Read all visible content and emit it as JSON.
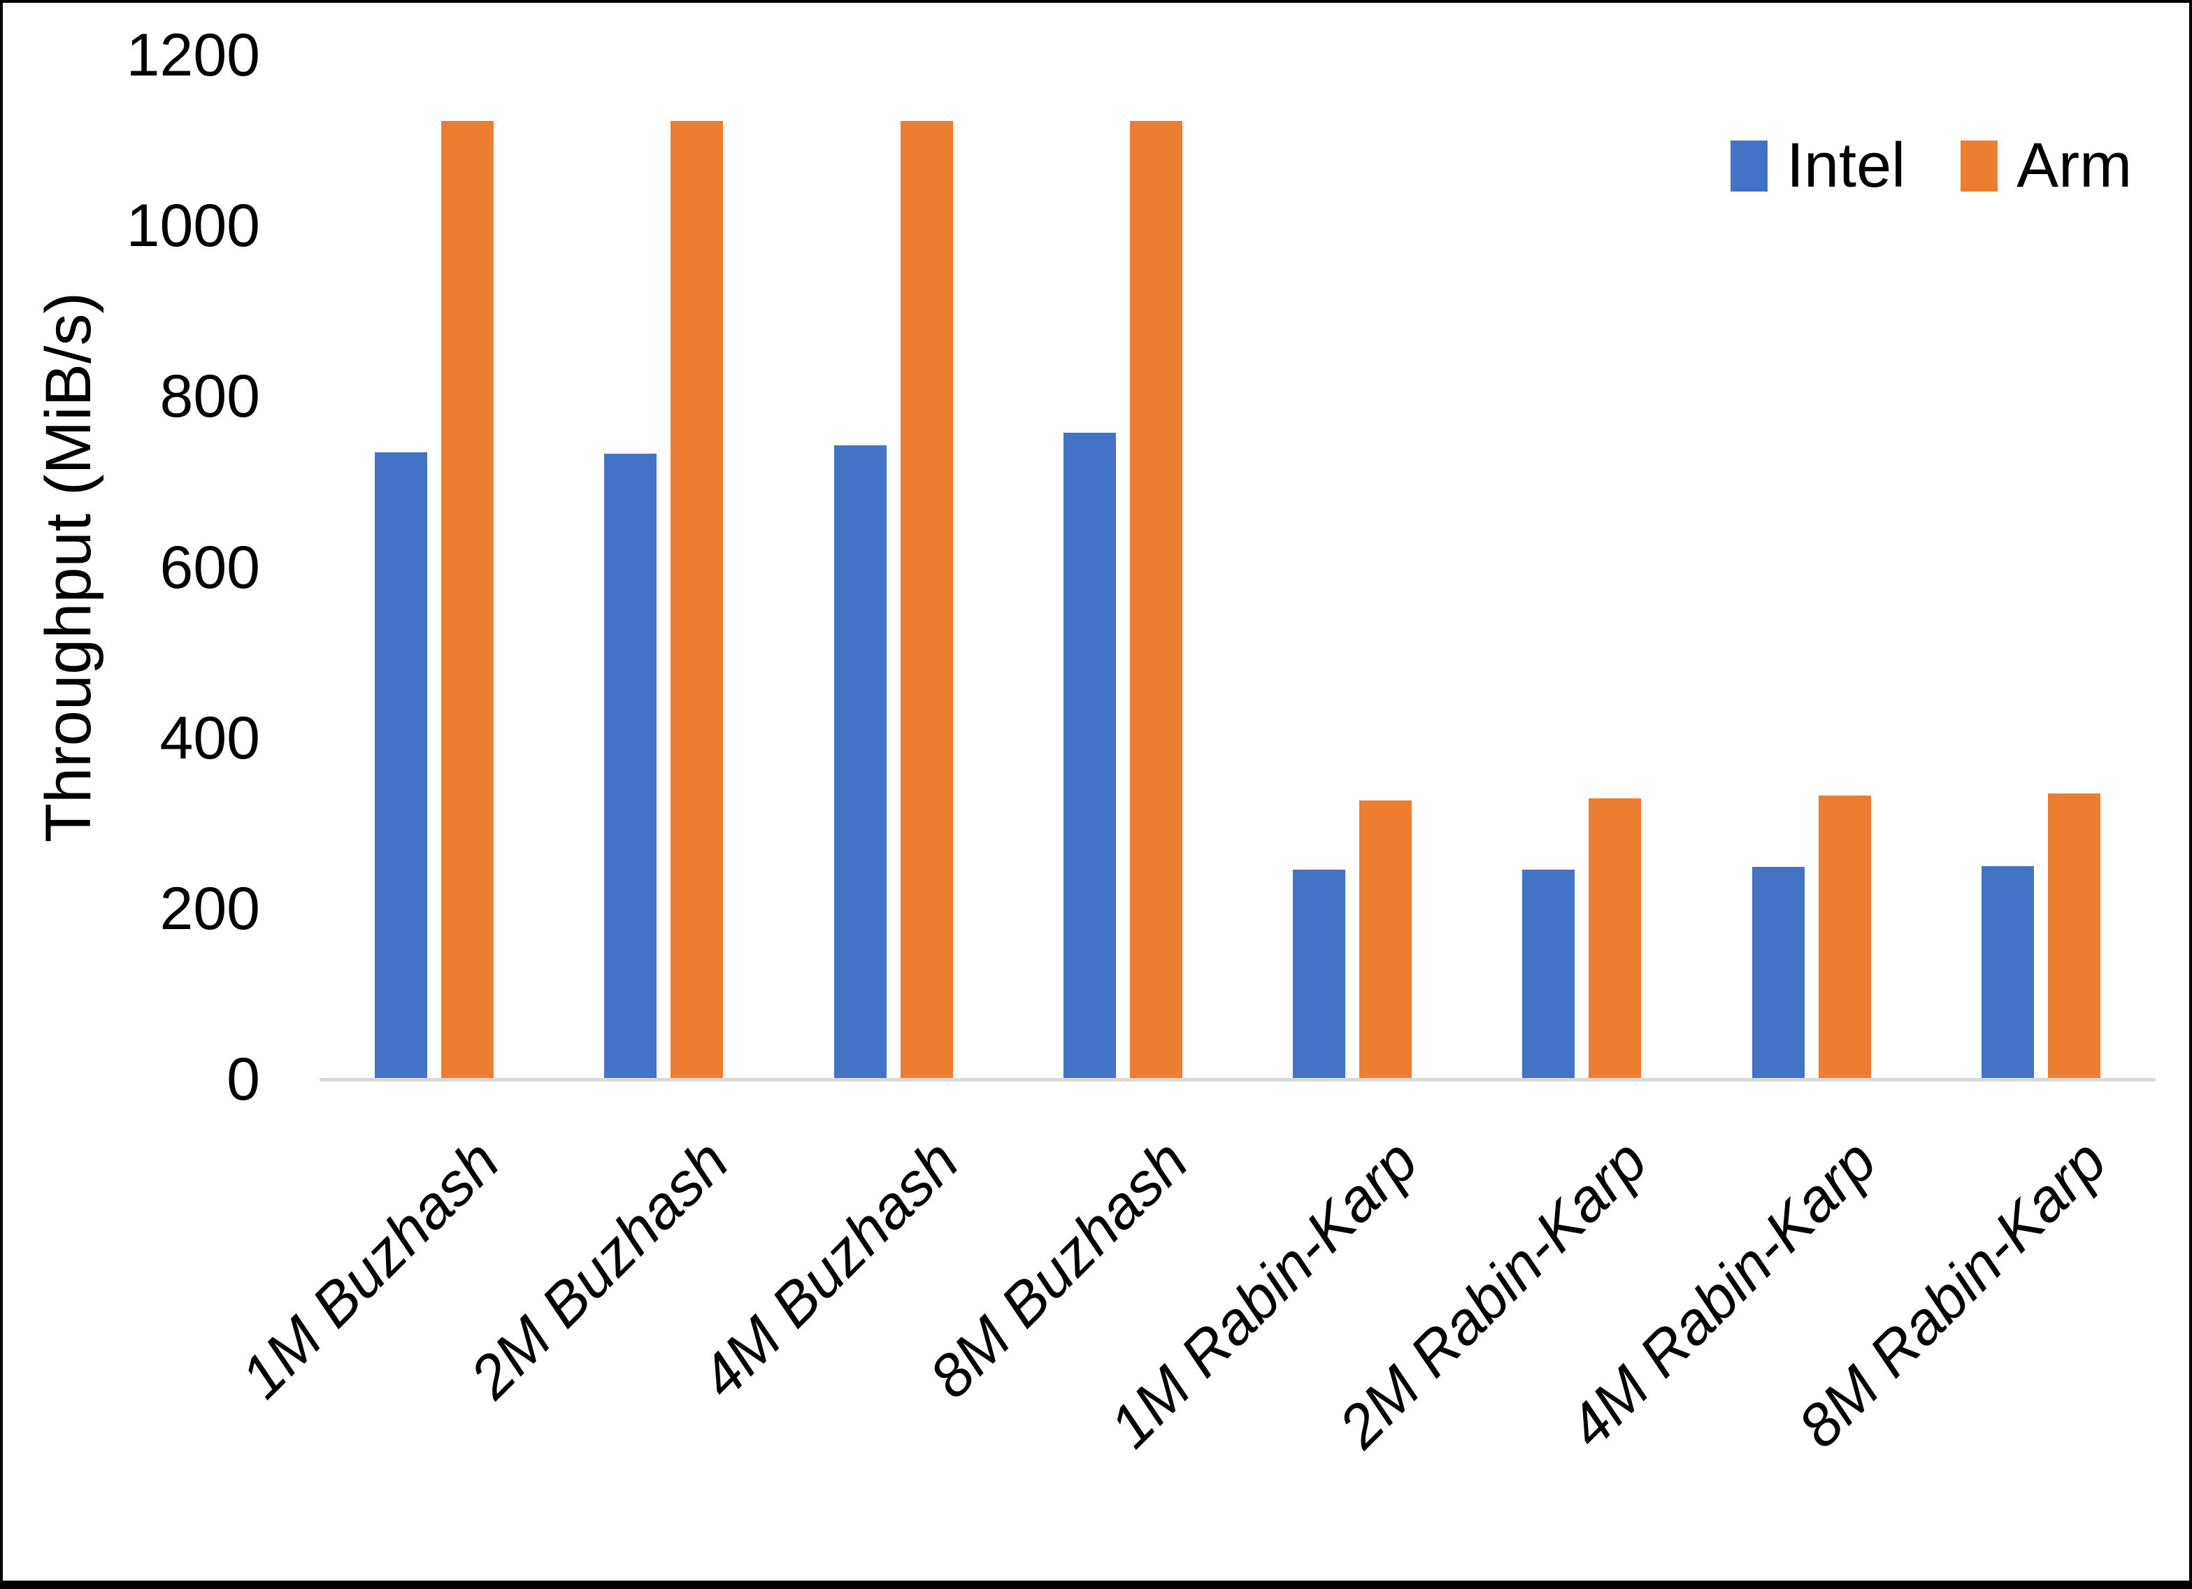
{
  "chart_data": {
    "type": "bar",
    "title": "",
    "ylabel": "Throughput (MiB/s)",
    "xlabel": "",
    "ylim": [
      0,
      1200
    ],
    "yticks": [
      0,
      200,
      400,
      600,
      800,
      1000,
      1200
    ],
    "grid": false,
    "legend_position": "top-right",
    "categories": [
      "1M Buzhash",
      "2M Buzhash",
      "4M Buzhash",
      "8M Buzhash",
      "1M Rabin-Karp",
      "2M Rabin-Karp",
      "4M Rabin-Karp",
      "8M Rabin-Karp"
    ],
    "series": [
      {
        "name": "Intel",
        "color": "#4472C4",
        "values": [
          735,
          733,
          743,
          758,
          246,
          246,
          249,
          250
        ]
      },
      {
        "name": "Arm",
        "color": "#ED7D31",
        "values": [
          1123,
          1123,
          1123,
          1123,
          327,
          329,
          333,
          335
        ]
      }
    ],
    "colors": {
      "axis_line": "#D9D9D9",
      "text": "#000000",
      "frame_border": "#000000",
      "background": "#FFFFFF"
    }
  }
}
